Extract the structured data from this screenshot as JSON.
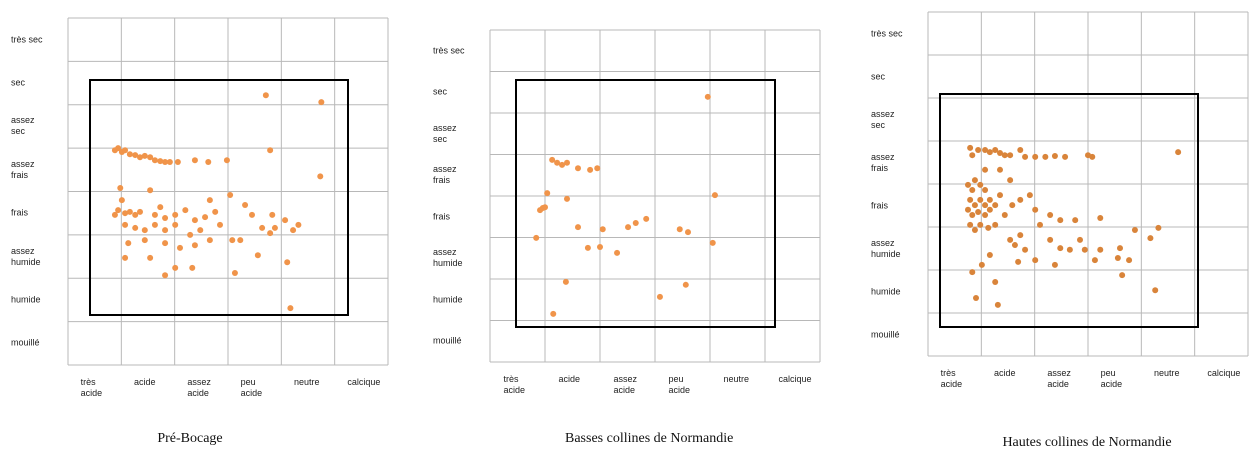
{
  "chart_data": [
    {
      "type": "scatter",
      "title": "Pré-Bocage",
      "color": "#f0944a",
      "xlim": [
        0,
        6
      ],
      "ylim": [
        0,
        8
      ],
      "xgrid": [
        0,
        1,
        2,
        3,
        4,
        5,
        6
      ],
      "ygrid": [
        0,
        1,
        2,
        3,
        4,
        5,
        6,
        7,
        8
      ],
      "xticks": [
        {
          "value": 0.5,
          "label": "très acide"
        },
        {
          "value": 1.5,
          "label": "acide"
        },
        {
          "value": 2.5,
          "label": "assez acide"
        },
        {
          "value": 3.5,
          "label": "peu acide"
        },
        {
          "value": 4.5,
          "label": "neutre"
        },
        {
          "value": 5.5,
          "label": "calcique"
        }
      ],
      "yticks": [
        {
          "value": 7.5,
          "label": "très sec"
        },
        {
          "value": 6.5,
          "label": "sec"
        },
        {
          "value": 5.5,
          "label": "assez sec"
        },
        {
          "value": 4.5,
          "label": "assez frais"
        },
        {
          "value": 3.5,
          "label": "frais"
        },
        {
          "value": 2.5,
          "label": "assez humide"
        },
        {
          "value": 1.5,
          "label": "humide"
        },
        {
          "value": 0.5,
          "label": "mouillé"
        }
      ],
      "x": [
        3.71,
        4.75,
        3.79,
        4.73,
        0.88,
        0.94,
        1.01,
        1.07,
        1.16,
        1.26,
        1.35,
        1.44,
        1.54,
        1.63,
        1.73,
        1.82,
        1.91,
        2.06,
        2.38,
        2.63,
        2.98,
        0.98,
        1.01,
        0.94,
        0.88,
        1.07,
        1.16,
        1.26,
        1.35,
        1.54,
        1.63,
        1.73,
        1.82,
        2.01,
        2.2,
        2.38,
        2.57,
        2.76,
        3.04,
        3.32,
        1.07,
        1.26,
        1.44,
        1.63,
        1.82,
        2.01,
        2.29,
        2.48,
        2.66,
        2.85,
        3.08,
        1.13,
        1.44,
        1.82,
        2.1,
        2.38,
        1.07,
        1.54,
        2.01,
        2.33,
        1.82,
        3.13,
        3.56,
        3.64,
        3.79,
        3.88,
        3.83,
        4.07,
        4.22,
        4.32,
        4.11,
        4.17,
        3.45,
        3.23,
        2.66
      ],
      "values": [
        6.22,
        6.06,
        4.95,
        4.35,
        4.95,
        5.0,
        4.91,
        4.95,
        4.86,
        4.84,
        4.79,
        4.82,
        4.79,
        4.72,
        4.7,
        4.68,
        4.68,
        4.68,
        4.72,
        4.68,
        4.72,
        4.08,
        3.8,
        3.57,
        3.46,
        3.5,
        3.53,
        3.46,
        3.53,
        4.03,
        3.46,
        3.64,
        3.39,
        3.46,
        3.57,
        3.34,
        3.41,
        3.53,
        3.92,
        3.69,
        3.23,
        3.16,
        3.11,
        3.23,
        3.11,
        3.23,
        3.0,
        3.11,
        2.88,
        3.23,
        2.88,
        2.81,
        2.88,
        2.81,
        2.7,
        2.76,
        2.47,
        2.47,
        2.24,
        2.24,
        2.07,
        2.12,
        2.53,
        3.16,
        3.04,
        3.16,
        3.46,
        3.34,
        3.11,
        3.23,
        2.37,
        1.31,
        3.46,
        2.88,
        3.8
      ]
    },
    {
      "type": "scatter",
      "title": "Basses collines de Normandie",
      "color": "#f0944a",
      "xlim": [
        0,
        6
      ],
      "ylim": [
        0,
        8
      ],
      "xgrid": [
        0,
        1,
        2,
        3,
        4,
        5,
        6
      ],
      "ygrid": [
        0,
        1,
        2,
        3,
        4,
        5,
        6,
        7,
        8
      ],
      "xticks": [
        {
          "value": 0.5,
          "label": "très acide"
        },
        {
          "value": 1.5,
          "label": "acide"
        },
        {
          "value": 2.5,
          "label": "assez acide"
        },
        {
          "value": 3.5,
          "label": "peu acide"
        },
        {
          "value": 4.5,
          "label": "neutre"
        },
        {
          "value": 5.5,
          "label": "calcique"
        }
      ],
      "yticks": [
        {
          "value": 7.5,
          "label": "très sec"
        },
        {
          "value": 6.5,
          "label": "sec"
        },
        {
          "value": 5.5,
          "label": "assez sec"
        },
        {
          "value": 4.5,
          "label": "assez frais"
        },
        {
          "value": 3.5,
          "label": "frais"
        },
        {
          "value": 2.5,
          "label": "assez humide"
        },
        {
          "value": 1.5,
          "label": "humide"
        },
        {
          "value": 0.5,
          "label": "mouillé"
        }
      ],
      "x": [
        3.96,
        4.09,
        4.05,
        1.13,
        1.22,
        1.31,
        1.4,
        1.6,
        1.82,
        1.95,
        1.04,
        1.0,
        0.91,
        0.96,
        0.84,
        1.4,
        1.6,
        1.78,
        2.0,
        2.05,
        2.31,
        2.51,
        2.65,
        2.84,
        3.45,
        3.6,
        1.38,
        1.15,
        3.09,
        3.56
      ],
      "values": [
        6.39,
        4.02,
        2.87,
        4.87,
        4.8,
        4.75,
        4.8,
        4.67,
        4.63,
        4.67,
        4.07,
        3.73,
        3.66,
        3.71,
        2.99,
        3.93,
        3.25,
        2.75,
        2.77,
        3.2,
        2.63,
        3.25,
        3.35,
        3.45,
        3.2,
        3.13,
        1.93,
        1.16,
        1.57,
        1.86
      ]
    },
    {
      "type": "scatter",
      "title": "Hautes collines de Normandie",
      "color": "#d9843a",
      "xlim": [
        0,
        6
      ],
      "ylim": [
        0,
        8
      ],
      "xgrid": [
        0,
        1,
        2,
        3,
        4,
        5,
        6
      ],
      "ygrid": [
        0,
        1,
        2,
        3,
        4,
        5,
        6,
        7,
        8
      ],
      "xticks": [
        {
          "value": 0.5,
          "label": "très acide"
        },
        {
          "value": 1.5,
          "label": "acide"
        },
        {
          "value": 2.5,
          "label": "assez acide"
        },
        {
          "value": 3.5,
          "label": "peu acide"
        },
        {
          "value": 4.5,
          "label": "neutre"
        },
        {
          "value": 5.5,
          "label": "calcique"
        }
      ],
      "yticks": [
        {
          "value": 7.5,
          "label": "très sec"
        },
        {
          "value": 6.5,
          "label": "sec"
        },
        {
          "value": 5.5,
          "label": "assez sec"
        },
        {
          "value": 4.5,
          "label": "assez frais"
        },
        {
          "value": 3.5,
          "label": "frais"
        },
        {
          "value": 2.5,
          "label": "assez humide"
        },
        {
          "value": 1.5,
          "label": "humide"
        },
        {
          "value": 0.5,
          "label": "mouillé"
        }
      ],
      "x": [
        0.79,
        0.83,
        0.94,
        1.07,
        1.16,
        1.26,
        1.35,
        1.44,
        1.54,
        1.73,
        1.82,
        2.01,
        2.2,
        2.38,
        2.57,
        3.0,
        3.08,
        4.69,
        0.75,
        0.83,
        0.88,
        0.98,
        1.07,
        0.79,
        0.88,
        0.98,
        1.07,
        1.16,
        0.75,
        0.83,
        0.94,
        1.07,
        1.16,
        1.26,
        1.35,
        0.79,
        0.88,
        0.98,
        1.13,
        1.26,
        1.44,
        1.58,
        1.73,
        1.91,
        2.01,
        2.1,
        2.29,
        2.48,
        2.76,
        3.23,
        3.88,
        4.32,
        1.54,
        1.73,
        2.29,
        2.48,
        2.85,
        3.23,
        3.6,
        4.17,
        3.56,
        3.77,
        1.16,
        1.63,
        1.82,
        2.01,
        2.66,
        2.94,
        3.13,
        1.01,
        1.69,
        2.38,
        0.83,
        3.64,
        1.26,
        0.9,
        1.31,
        4.26,
        1.07,
        1.54,
        1.35
      ],
      "values": [
        4.84,
        4.67,
        4.79,
        4.79,
        4.74,
        4.79,
        4.72,
        4.67,
        4.67,
        4.79,
        4.63,
        4.63,
        4.63,
        4.65,
        4.63,
        4.67,
        4.63,
        4.74,
        3.98,
        3.86,
        4.09,
        3.98,
        3.86,
        3.63,
        3.51,
        3.63,
        3.51,
        3.63,
        3.4,
        3.28,
        3.35,
        3.28,
        3.4,
        3.51,
        3.74,
        3.05,
        2.93,
        3.05,
        2.98,
        3.05,
        3.28,
        3.51,
        3.63,
        3.74,
        3.4,
        3.05,
        3.28,
        3.16,
        3.16,
        3.21,
        2.93,
        2.98,
        2.7,
        2.81,
        2.7,
        2.51,
        2.7,
        2.47,
        2.51,
        2.74,
        2.28,
        2.23,
        2.35,
        2.58,
        2.47,
        2.23,
        2.47,
        2.47,
        2.23,
        2.12,
        2.19,
        2.12,
        1.95,
        1.88,
        1.72,
        1.35,
        1.19,
        1.53,
        4.33,
        4.09,
        4.33
      ]
    }
  ]
}
